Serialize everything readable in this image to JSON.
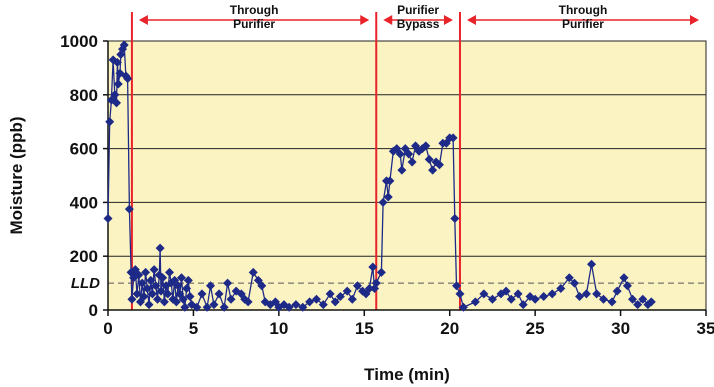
{
  "chart_data": {
    "type": "scatter",
    "xlabel": "Time (min)",
    "ylabel": "Moisture (ppb)",
    "xlim": [
      0,
      35
    ],
    "ylim": [
      0,
      1000
    ],
    "x_ticks": [
      "0",
      "5",
      "10",
      "15",
      "20",
      "25",
      "30",
      "35"
    ],
    "y_ticks": [
      "0",
      "200",
      "400",
      "600",
      "800",
      "1000"
    ],
    "grid": "horizontal",
    "colors": {
      "background": "#fbf4c2",
      "series": "#1e2a88",
      "dividers": "#e8232a",
      "arrows": "#e8232a"
    },
    "reference_line": {
      "label": "LLD",
      "y": 100
    },
    "dividers_x": [
      1.4,
      15.7,
      20.6
    ],
    "regions": [
      {
        "label_lines": [
          "Through",
          "Purifier"
        ],
        "x_start": 1.4,
        "x_end": 15.7
      },
      {
        "label_lines": [
          "Purifier",
          "Bypass"
        ],
        "x_start": 15.7,
        "x_end": 20.6
      },
      {
        "label_lines": [
          "Through",
          "Purifier"
        ],
        "x_start": 20.6,
        "x_end": 35
      }
    ],
    "series": [
      {
        "points": [
          [
            0.0,
            340
          ],
          [
            0.1,
            700
          ],
          [
            0.2,
            780
          ],
          [
            0.3,
            930
          ],
          [
            0.4,
            800
          ],
          [
            0.5,
            770
          ],
          [
            0.55,
            920
          ],
          [
            0.6,
            840
          ],
          [
            0.7,
            880
          ],
          [
            0.75,
            950
          ],
          [
            0.85,
            970
          ],
          [
            0.95,
            985
          ],
          [
            1.05,
            870
          ],
          [
            1.15,
            860
          ],
          [
            1.25,
            375
          ],
          [
            1.35,
            140
          ],
          [
            1.4,
            40
          ],
          [
            1.5,
            120
          ],
          [
            1.6,
            150
          ],
          [
            1.7,
            60
          ],
          [
            1.8,
            130
          ],
          [
            1.9,
            30
          ],
          [
            2.0,
            100
          ],
          [
            2.1,
            50
          ],
          [
            2.2,
            140
          ],
          [
            2.3,
            80
          ],
          [
            2.4,
            20
          ],
          [
            2.5,
            110
          ],
          [
            2.6,
            60
          ],
          [
            2.7,
            150
          ],
          [
            2.8,
            90
          ],
          [
            2.9,
            40
          ],
          [
            3.0,
            130
          ],
          [
            3.05,
            230
          ],
          [
            3.1,
            70
          ],
          [
            3.2,
            120
          ],
          [
            3.3,
            30
          ],
          [
            3.4,
            90
          ],
          [
            3.5,
            60
          ],
          [
            3.6,
            140
          ],
          [
            3.7,
            100
          ],
          [
            3.8,
            40
          ],
          [
            3.9,
            110
          ],
          [
            4.0,
            30
          ],
          [
            4.1,
            90
          ],
          [
            4.2,
            60
          ],
          [
            4.3,
            120
          ],
          [
            4.4,
            40
          ],
          [
            4.5,
            10
          ],
          [
            4.6,
            80
          ],
          [
            4.7,
            110
          ],
          [
            4.8,
            50
          ],
          [
            4.9,
            20
          ],
          [
            5.2,
            10
          ],
          [
            5.5,
            60
          ],
          [
            5.8,
            10
          ],
          [
            6.0,
            90
          ],
          [
            6.2,
            20
          ],
          [
            6.5,
            60
          ],
          [
            6.8,
            10
          ],
          [
            7.0,
            100
          ],
          [
            7.2,
            40
          ],
          [
            7.5,
            70
          ],
          [
            7.8,
            60
          ],
          [
            8.0,
            40
          ],
          [
            8.2,
            30
          ],
          [
            8.5,
            140
          ],
          [
            8.8,
            110
          ],
          [
            9.0,
            90
          ],
          [
            9.2,
            30
          ],
          [
            9.5,
            20
          ],
          [
            9.8,
            30
          ],
          [
            10.0,
            10
          ],
          [
            10.3,
            20
          ],
          [
            10.6,
            10
          ],
          [
            11.0,
            20
          ],
          [
            11.4,
            10
          ],
          [
            11.8,
            30
          ],
          [
            12.2,
            40
          ],
          [
            12.6,
            20
          ],
          [
            13.0,
            60
          ],
          [
            13.3,
            30
          ],
          [
            13.6,
            50
          ],
          [
            14.0,
            70
          ],
          [
            14.3,
            40
          ],
          [
            14.6,
            90
          ],
          [
            14.9,
            70
          ],
          [
            15.1,
            60
          ],
          [
            15.3,
            80
          ],
          [
            15.5,
            160
          ],
          [
            15.6,
            80
          ],
          [
            15.7,
            100
          ],
          [
            16.0,
            140
          ],
          [
            16.1,
            400
          ],
          [
            16.3,
            480
          ],
          [
            16.4,
            420
          ],
          [
            16.5,
            480
          ],
          [
            16.7,
            590
          ],
          [
            16.9,
            600
          ],
          [
            17.1,
            580
          ],
          [
            17.2,
            520
          ],
          [
            17.4,
            600
          ],
          [
            17.6,
            580
          ],
          [
            17.8,
            550
          ],
          [
            18.0,
            610
          ],
          [
            18.2,
            590
          ],
          [
            18.4,
            600
          ],
          [
            18.6,
            610
          ],
          [
            18.8,
            560
          ],
          [
            19.0,
            520
          ],
          [
            19.2,
            550
          ],
          [
            19.4,
            540
          ],
          [
            19.6,
            620
          ],
          [
            19.8,
            620
          ],
          [
            20.0,
            640
          ],
          [
            20.2,
            640
          ],
          [
            20.3,
            340
          ],
          [
            20.4,
            90
          ],
          [
            20.6,
            60
          ],
          [
            20.8,
            10
          ],
          [
            21.5,
            30
          ],
          [
            22.0,
            60
          ],
          [
            22.5,
            40
          ],
          [
            23.0,
            60
          ],
          [
            23.3,
            70
          ],
          [
            23.6,
            40
          ],
          [
            24.0,
            60
          ],
          [
            24.3,
            20
          ],
          [
            24.7,
            50
          ],
          [
            25.0,
            40
          ],
          [
            25.5,
            50
          ],
          [
            26.0,
            60
          ],
          [
            26.5,
            80
          ],
          [
            27.0,
            120
          ],
          [
            27.3,
            100
          ],
          [
            27.6,
            50
          ],
          [
            28.0,
            60
          ],
          [
            28.3,
            170
          ],
          [
            28.6,
            60
          ],
          [
            29.0,
            40
          ],
          [
            29.5,
            30
          ],
          [
            29.8,
            70
          ],
          [
            30.2,
            120
          ],
          [
            30.4,
            90
          ],
          [
            30.7,
            40
          ],
          [
            31.0,
            20
          ],
          [
            31.3,
            40
          ],
          [
            31.6,
            20
          ],
          [
            31.8,
            30
          ]
        ]
      }
    ]
  }
}
